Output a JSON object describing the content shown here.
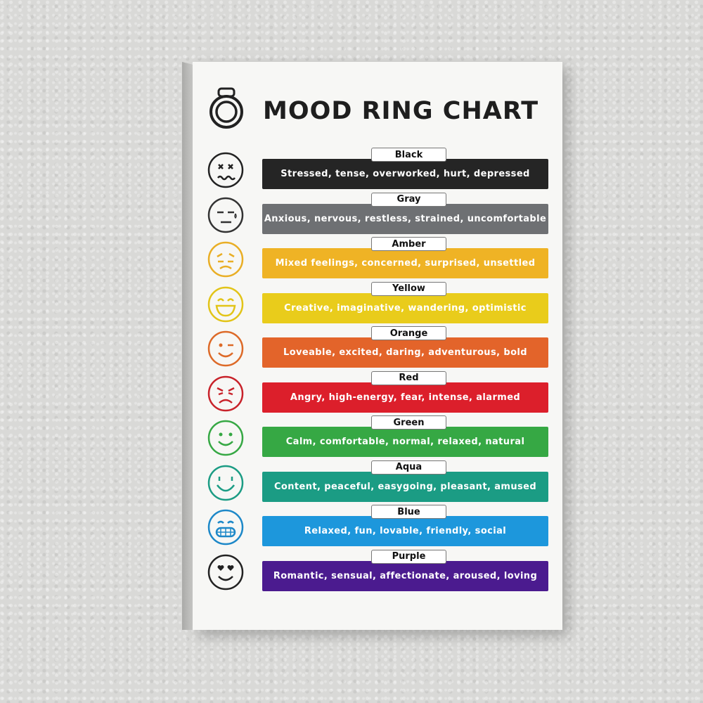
{
  "poster": {
    "title": "MOOD RING CHART",
    "rows": [
      {
        "color_name": "Black",
        "moods": "Stressed, tense, overworked, hurt, depressed",
        "bar_color": "#252525",
        "face_color": "#222222",
        "face": "dizzy-face-icon"
      },
      {
        "color_name": "Gray",
        "moods": "Anxious, nervous, restless, strained, uncomfortable",
        "bar_color": "#6e7073",
        "face_color": "#333333",
        "face": "sweat-face-icon"
      },
      {
        "color_name": "Amber",
        "moods": "Mixed feelings, concerned, surprised, unsettled",
        "bar_color": "#efb325",
        "face_color": "#e9ae25",
        "face": "concerned-face-icon"
      },
      {
        "color_name": "Yellow",
        "moods": "Creative, imaginative, wandering, optimistic",
        "bar_color": "#e9cc1b",
        "face_color": "#e2c418",
        "face": "grin-face-icon"
      },
      {
        "color_name": "Orange",
        "moods": "Loveable, excited, daring, adventurous, bold",
        "bar_color": "#e3642a",
        "face_color": "#dd6a28",
        "face": "wink-face-icon"
      },
      {
        "color_name": "Red",
        "moods": "Angry, high-energy, fear, intense, alarmed",
        "bar_color": "#dc1f2b",
        "face_color": "#c8222a",
        "face": "angry-face-icon"
      },
      {
        "color_name": "Green",
        "moods": "Calm, comfortable, normal, relaxed, natural",
        "bar_color": "#36a844",
        "face_color": "#36a844",
        "face": "smile-face-icon"
      },
      {
        "color_name": "Aqua",
        "moods": "Content, peaceful, easygoing, pleasant, amused",
        "bar_color": "#1b9c84",
        "face_color": "#1b9c84",
        "face": "happy-face-icon"
      },
      {
        "color_name": "Blue",
        "moods": "Relaxed, fun, lovable, friendly, social",
        "bar_color": "#1d97dc",
        "face_color": "#1d88c8",
        "face": "teeth-grin-face-icon"
      },
      {
        "color_name": "Purple",
        "moods": "Romantic, sensual, affectionate, aroused, loving",
        "bar_color": "#4b1b8f",
        "face_color": "#222222",
        "face": "heart-eyes-face-icon"
      }
    ]
  }
}
